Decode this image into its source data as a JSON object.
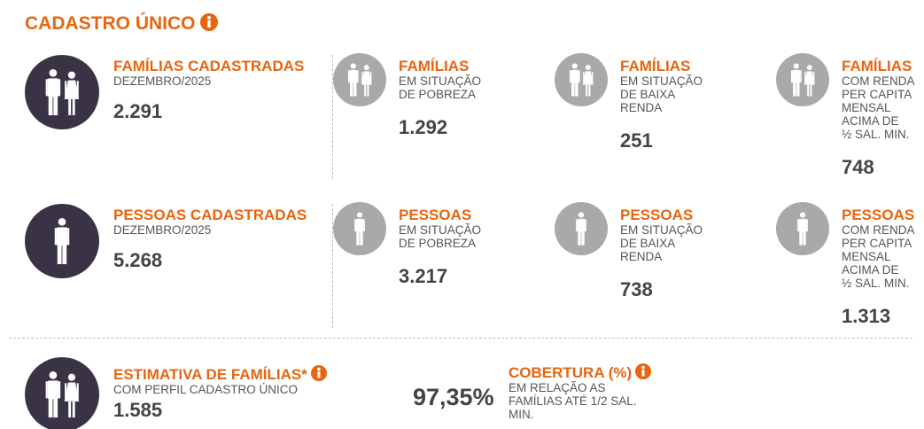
{
  "title": "CADASTRO ÚNICO",
  "rows": [
    {
      "items": [
        {
          "label": "FAMÍLIAS CADASTRADAS",
          "sub": [
            "DEZEMBRO/2025"
          ],
          "value": "2.291"
        },
        {
          "label": "FAMÍLIAS",
          "sub": [
            "EM SITUAÇÃO",
            "DE POBREZA"
          ],
          "value": "1.292"
        },
        {
          "label": "FAMÍLIAS",
          "sub": [
            "EM SITUAÇÃO",
            "DE BAIXA",
            "RENDA"
          ],
          "value": "251"
        },
        {
          "label": "FAMÍLIAS",
          "sub": [
            "COM RENDA",
            "PER CAPITA",
            "MENSAL",
            "ACIMA DE",
            "½ SAL. MIN."
          ],
          "value": "748"
        }
      ]
    },
    {
      "items": [
        {
          "label": "PESSOAS CADASTRADAS",
          "sub": [
            "DEZEMBRO/2025"
          ],
          "value": "5.268"
        },
        {
          "label": "PESSOAS",
          "sub": [
            "EM SITUAÇÃO",
            "DE POBREZA"
          ],
          "value": "3.217"
        },
        {
          "label": "PESSOAS",
          "sub": [
            "EM SITUAÇÃO",
            "DE BAIXA",
            "RENDA"
          ],
          "value": "738"
        },
        {
          "label": "PESSOAS",
          "sub": [
            "COM RENDA",
            "PER CAPITA",
            "MENSAL",
            "ACIMA DE",
            "½ SAL. MIN."
          ],
          "value": "1.313"
        }
      ]
    }
  ],
  "estimate": {
    "label": "ESTIMATIVA DE FAMÍLIAS*",
    "sub": [
      "COM PERFIL CADASTRO ÚNICO"
    ],
    "value": "1.585"
  },
  "coverage": {
    "value": "97,35%",
    "label": "COBERTURA (%)",
    "sub": [
      "EM RELAÇÃO AS",
      "FAMÍLIAS ATÉ 1/2 SAL.",
      "MIN."
    ]
  }
}
